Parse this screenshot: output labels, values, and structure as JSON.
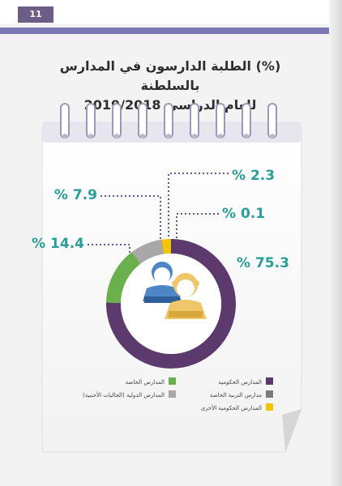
{
  "page": {
    "number": "11"
  },
  "title_lines": [
    "(%) الطلبة الدارسون في المدارس بالسلطنة",
    "للعام الدراسي 2019/2018"
  ],
  "colors": {
    "government": "#5d3a6e",
    "special_education": "#7b7b7b",
    "other_government": "#f4c400",
    "private": "#6ab04c",
    "international": "#a8a8a8",
    "value_text": "#2a9d9a",
    "header_rule": "#7c79b5"
  },
  "chart_data": {
    "type": "pie",
    "donut": true,
    "title": "(%) الطلبة الدارسون في المدارس بالسلطنة للعام الدراسي 2019/2018",
    "slices": [
      {
        "label": "المدارس الحكومية",
        "value": 75.3,
        "value_label": "% 75.3",
        "color": "#5d3a6e"
      },
      {
        "label": "المدارس الخاصة",
        "value": 14.4,
        "value_label": "% 14.4",
        "color": "#6ab04c"
      },
      {
        "label": "المدارس الدولية (الجاليات الأجنبية)",
        "value": 7.9,
        "value_label": "% 7.9",
        "color": "#a8a8a8"
      },
      {
        "label": "مدارس التربية الخاصة",
        "value": 0.1,
        "value_label": "% 0.1",
        "color": "#7b7b7b"
      },
      {
        "label": "المدارس الحكومية الأخرى",
        "value": 2.3,
        "value_label": "% 2.3",
        "color": "#f4c400"
      }
    ],
    "legend_position": "bottom"
  }
}
